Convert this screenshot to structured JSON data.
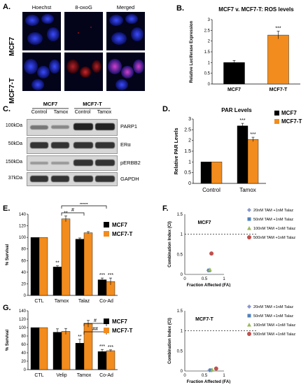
{
  "panels": {
    "A": {
      "label": "A.",
      "columns": [
        "Hoechst",
        "8-oxoG",
        "Merged"
      ],
      "rows": [
        "MCF7",
        "MCF7-T"
      ]
    },
    "B": {
      "label": "B.",
      "title": "MCF7 v. MCF7-T: ROS levels"
    },
    "C": {
      "label": "C.",
      "groups": [
        "MCF7",
        "MCF7-T"
      ],
      "lanes": [
        "Control",
        "Tamox",
        "Control",
        "Tamox"
      ],
      "markers": [
        "100kDa",
        "50kDa",
        "150kDa",
        "37kDa"
      ],
      "proteins": [
        "PARP1",
        "ERα",
        "pERBB2",
        "GAPDH"
      ]
    },
    "D": {
      "label": "D.",
      "title": "PAR Levels"
    },
    "E": {
      "label": "E."
    },
    "F": {
      "label": "F.",
      "subtitles": [
        "MCF7",
        "MCF7-T"
      ]
    },
    "G": {
      "label": "G."
    }
  },
  "chart_data": [
    {
      "id": "B",
      "type": "bar",
      "title": "MCF7 v. MCF7-T: ROS levels",
      "categories": [
        "MCF7",
        "MCF7-T"
      ],
      "values": [
        1.0,
        2.28
      ],
      "errors": [
        0.1,
        0.18
      ],
      "colors": [
        "#000000",
        "#f28c1e"
      ],
      "ylabel": "Relative Luciferase Expression",
      "ylim": [
        0,
        3
      ],
      "yticks": [
        "0",
        "0.5",
        "1",
        "1.5",
        "2",
        "2.5",
        "3"
      ],
      "annotations": [
        "",
        "***"
      ]
    },
    {
      "id": "D",
      "type": "bar",
      "title": "PAR Levels",
      "categories": [
        "Control",
        "Tamox"
      ],
      "series": [
        {
          "name": "MCF7",
          "color": "#000000",
          "values": [
            1.0,
            2.68
          ],
          "errors": [
            0,
            0.12
          ]
        },
        {
          "name": "MCF7-T",
          "color": "#f28c1e",
          "values": [
            1.0,
            2.05
          ],
          "errors": [
            0,
            0.1
          ]
        }
      ],
      "ylabel": "Relative PAR Levels",
      "ylim": [
        0,
        3
      ],
      "yticks": [
        "0",
        "0.5",
        "1",
        "1.5",
        "2",
        "2.5",
        "3"
      ],
      "annotations": [
        "***",
        "***"
      ],
      "legend": "top-right"
    },
    {
      "id": "E",
      "type": "bar",
      "categories": [
        "CTL",
        "Tamox",
        "Talaz",
        "Co-Ad"
      ],
      "series": [
        {
          "name": "MCF7",
          "color": "#000000",
          "values": [
            100,
            49,
            97,
            27
          ],
          "errors": [
            0,
            2,
            2,
            3
          ]
        },
        {
          "name": "MCF7-T",
          "color": "#f28c1e",
          "values": [
            100,
            132,
            108,
            24
          ],
          "errors": [
            0,
            5,
            2,
            6
          ]
        }
      ],
      "ylabel": "% Survival",
      "ylim": [
        0,
        140
      ],
      "yticks": [
        "0",
        "20",
        "40",
        "60",
        "80",
        "100",
        "120",
        "140"
      ],
      "annotations": {
        "stars": [
          "",
          "",
          "**",
          "**",
          "",
          "",
          "***",
          "***"
        ],
        "brackets": [
          "#",
          "###"
        ]
      },
      "legend": "top-right"
    },
    {
      "id": "F1",
      "type": "scatter",
      "title": "MCF7",
      "xlabel": "Fraction Affected (FA)",
      "ylabel": "Combination Index (CI)",
      "xlim": [
        0,
        1
      ],
      "ylim": [
        0,
        1.5
      ],
      "xticks": [
        "0",
        "0.5",
        "1"
      ],
      "yticks": [
        "0",
        "0.5",
        "1",
        "1.5"
      ],
      "reference_line": 1,
      "series": [
        {
          "name": "20nM TAM +1nM Talaz",
          "color": "#8899cc",
          "marker": "diamond",
          "points": [
            [
              0.6,
              0.1
            ]
          ]
        },
        {
          "name": "50nM TAM +1nM Talaz",
          "color": "#4f81bd",
          "marker": "square",
          "points": [
            [
              0.62,
              0.1
            ]
          ]
        },
        {
          "name": "100nM TAM +1nM Talaz",
          "color": "#9bbb59",
          "marker": "triangle",
          "points": [
            [
              0.64,
              0.12
            ]
          ]
        },
        {
          "name": "500nM TAM +1nM Talaz",
          "color": "#c0504d",
          "marker": "circle",
          "points": [
            [
              0.68,
              0.52
            ]
          ]
        }
      ],
      "legend": "top-right"
    },
    {
      "id": "F2",
      "type": "scatter",
      "title": "MCF7-T",
      "xlabel": "Fraction Affected (FA)",
      "ylabel": "Combination Index (CI)",
      "xlim": [
        0,
        1
      ],
      "ylim": [
        0,
        1.5
      ],
      "xticks": [
        "0",
        "0.5",
        "1"
      ],
      "yticks": [
        "0",
        "0.5",
        "1",
        "1.5"
      ],
      "reference_line": 1,
      "series": [
        {
          "name": "20nM TAM +1nM Talaz",
          "color": "#8899cc",
          "marker": "diamond",
          "points": [
            [
              0.63,
              0.02
            ]
          ]
        },
        {
          "name": "50nM TAM +1nM Talaz",
          "color": "#4f81bd",
          "marker": "square",
          "points": [
            [
              0.66,
              0.02
            ]
          ]
        },
        {
          "name": "100nM TAM +1nM Talaz",
          "color": "#9bbb59",
          "marker": "triangle",
          "points": [
            [
              0.7,
              0.03
            ]
          ]
        },
        {
          "name": "500nM TAM +1nM Talaz",
          "color": "#c0504d",
          "marker": "circle",
          "points": [
            [
              0.8,
              0.06
            ]
          ]
        }
      ],
      "legend": "top-right"
    },
    {
      "id": "G",
      "type": "bar",
      "categories": [
        "CTL",
        "Velip",
        "Tamox",
        "Co-Ad"
      ],
      "series": [
        {
          "name": "MCF7",
          "color": "#000000",
          "values": [
            100,
            89,
            63,
            43
          ],
          "errors": [
            0,
            8,
            9,
            5
          ]
        },
        {
          "name": "MCF7-T",
          "color": "#f28c1e",
          "values": [
            100,
            91,
            109,
            45
          ],
          "errors": [
            0,
            7,
            8,
            2
          ]
        }
      ],
      "ylabel": "% Survival",
      "ylim": [
        0,
        140
      ],
      "yticks": [
        "0",
        "20",
        "40",
        "60",
        "80",
        "100",
        "120",
        "140"
      ],
      "annotations": {
        "stars": [
          "",
          "",
          "",
          "",
          "**",
          "",
          "***",
          "***"
        ],
        "brackets": [
          "#",
          "##"
        ]
      },
      "legend": "top-right"
    }
  ]
}
